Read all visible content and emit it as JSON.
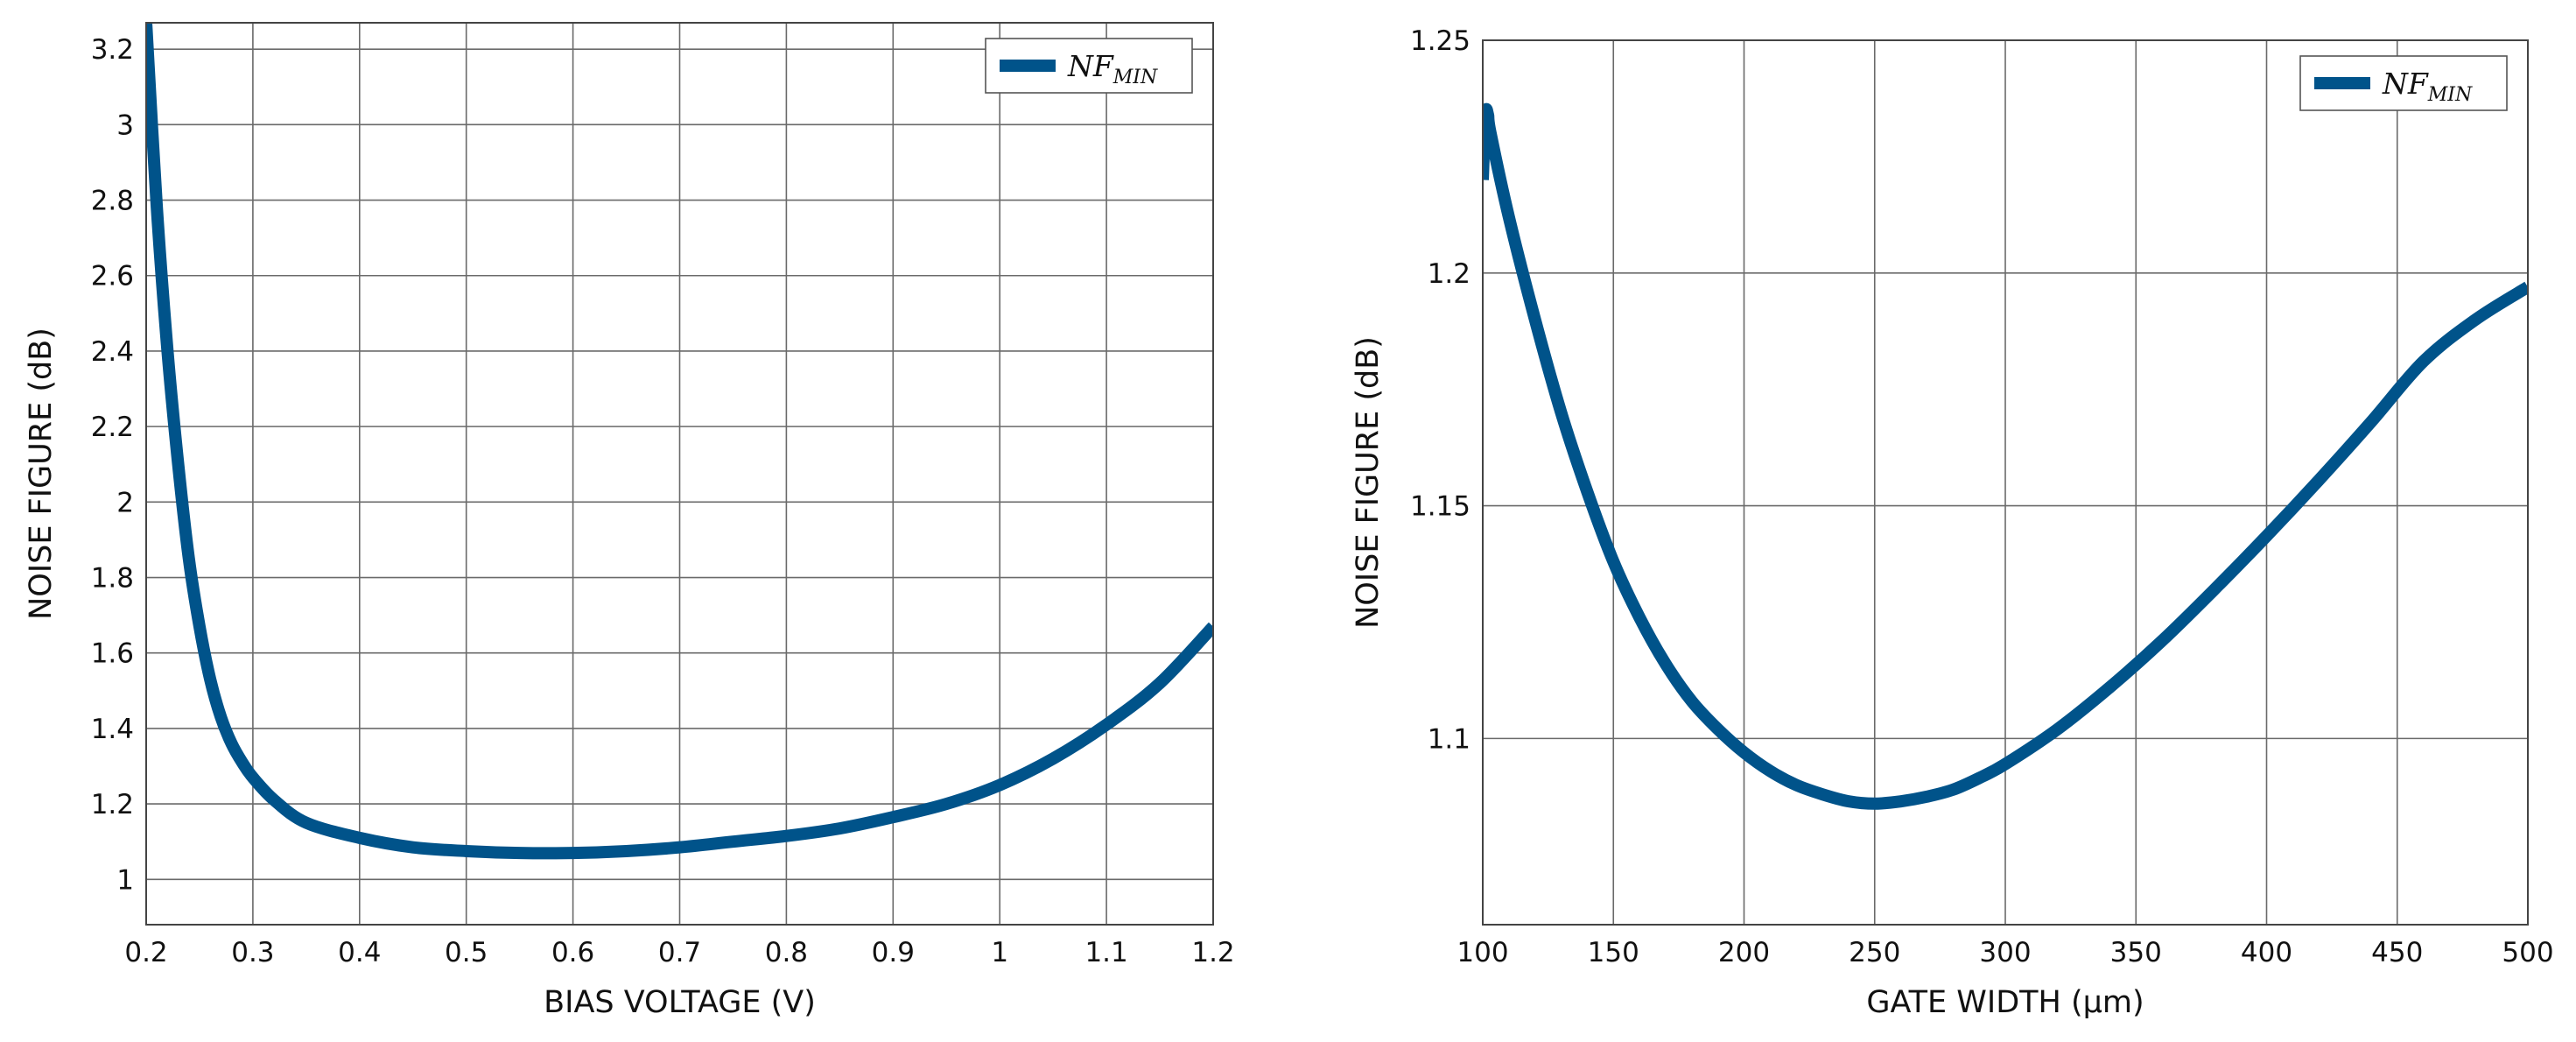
{
  "colors": {
    "series": "#00538a",
    "grid": "#6a6a6a",
    "background": "#ffffff"
  },
  "chart_data": [
    {
      "type": "line",
      "xlabel": "BIAS VOLTAGE (V)",
      "ylabel": "NOISE FIGURE (dB)",
      "xlim": [
        0.2,
        1.2
      ],
      "ylim": [
        0.88,
        3.27
      ],
      "xticks": [
        0.2,
        0.3,
        0.4,
        0.5,
        0.6,
        0.7,
        0.8,
        0.9,
        1,
        1.1,
        1.2
      ],
      "xtick_labels": [
        "0.2",
        "0.3",
        "0.4",
        "0.5",
        "0.6",
        "0.7",
        "0.8",
        "0.9",
        "1",
        "1.1",
        "1.2"
      ],
      "yticks": [
        1,
        1.2,
        1.4,
        1.6,
        1.8,
        2,
        2.2,
        2.4,
        2.6,
        2.8,
        3,
        3.2
      ],
      "ytick_labels": [
        "1",
        "1.2",
        "1.4",
        "1.6",
        "1.8",
        "2",
        "2.2",
        "2.4",
        "2.6",
        "2.8",
        "3",
        "3.2"
      ],
      "grid": true,
      "legend": {
        "position": "top-right",
        "label": "NF",
        "label_subscript": "MIN"
      },
      "series": [
        {
          "name": "NF_MIN",
          "x": [
            0.2,
            0.21,
            0.22,
            0.23,
            0.24,
            0.25,
            0.26,
            0.27,
            0.28,
            0.29,
            0.3,
            0.32,
            0.35,
            0.4,
            0.45,
            0.5,
            0.55,
            0.6,
            0.65,
            0.7,
            0.75,
            0.8,
            0.85,
            0.9,
            0.95,
            1,
            1.05,
            1.1,
            1.15,
            1.2
          ],
          "y": [
            3.27,
            2.78,
            2.4,
            2.1,
            1.85,
            1.67,
            1.53,
            1.43,
            1.36,
            1.31,
            1.27,
            1.21,
            1.15,
            1.11,
            1.085,
            1.075,
            1.07,
            1.07,
            1.075,
            1.085,
            1.1,
            1.115,
            1.135,
            1.165,
            1.2,
            1.25,
            1.32,
            1.41,
            1.52,
            1.67
          ]
        }
      ]
    },
    {
      "type": "line",
      "xlabel": "GATE WIDTH (μm)",
      "ylabel": "NOISE FIGURE (dB)",
      "xlim": [
        100,
        500
      ],
      "ylim": [
        1.06,
        1.25
      ],
      "xticks": [
        100,
        150,
        200,
        250,
        300,
        350,
        400,
        450,
        500
      ],
      "xtick_labels": [
        "100",
        "150",
        "200",
        "250",
        "300",
        "350",
        "400",
        "450",
        "500"
      ],
      "yticks": [
        1.1,
        1.15,
        1.2,
        1.25
      ],
      "ytick_labels": [
        "1.1",
        "1.15",
        "1.2",
        "1.25"
      ],
      "grid": true,
      "legend": {
        "position": "top-right",
        "label": "NF",
        "label_subscript": "MIN"
      },
      "series": [
        {
          "name": "NF_MIN",
          "x": [
            100,
            101,
            102,
            103,
            110,
            120,
            130,
            140,
            150,
            160,
            170,
            180,
            190,
            200,
            210,
            220,
            230,
            240,
            250,
            260,
            270,
            280,
            290,
            300,
            320,
            340,
            360,
            380,
            400,
            420,
            440,
            460,
            480,
            500
          ],
          "y": [
            1.22,
            1.234,
            1.234,
            1.23,
            1.212,
            1.19,
            1.17,
            1.153,
            1.138,
            1.126,
            1.116,
            1.108,
            1.102,
            1.097,
            1.093,
            1.09,
            1.088,
            1.0865,
            1.086,
            1.0865,
            1.0875,
            1.089,
            1.0915,
            1.0945,
            1.102,
            1.111,
            1.121,
            1.132,
            1.1435,
            1.1555,
            1.168,
            1.181,
            1.19,
            1.197
          ]
        }
      ]
    }
  ]
}
